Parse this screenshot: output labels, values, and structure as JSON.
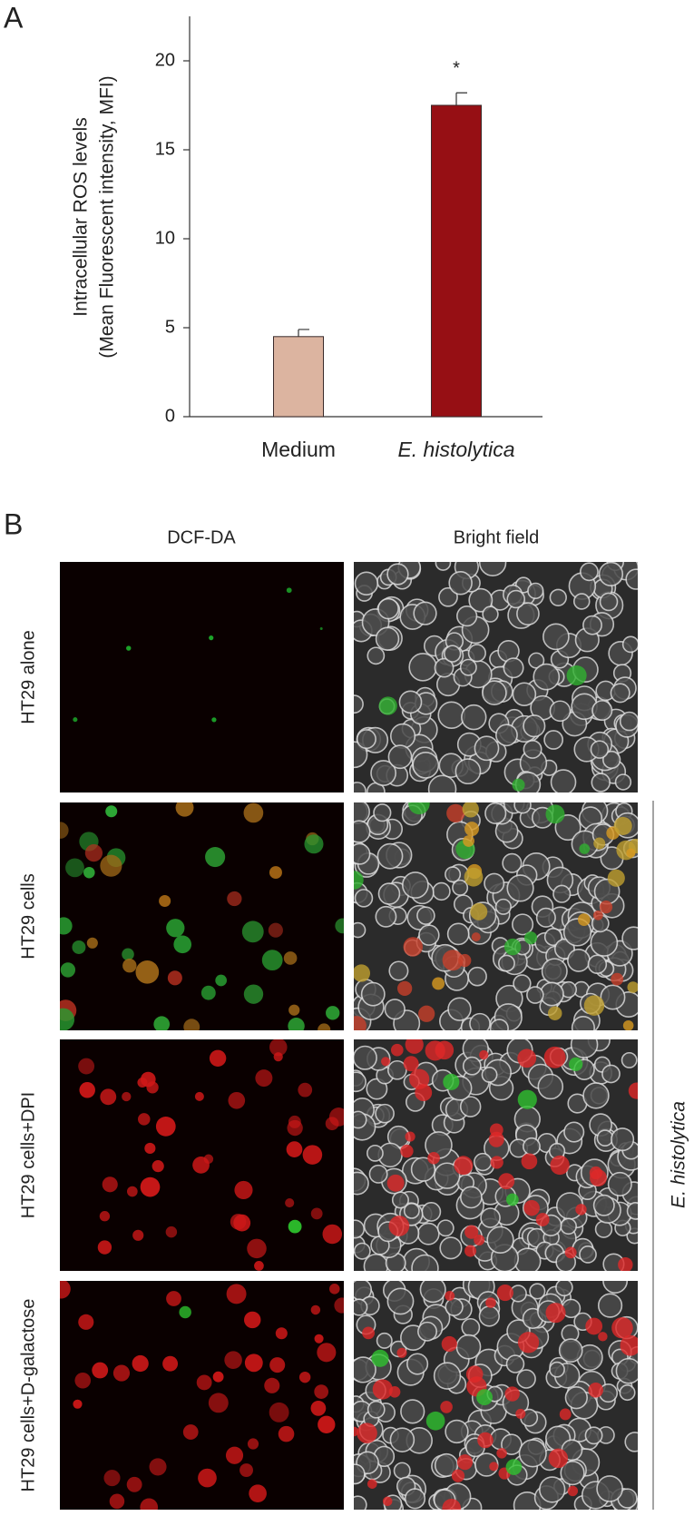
{
  "chart_data": {
    "type": "bar",
    "y_label": [
      "Intracellular ROS levels",
      "(Mean Fluorescent intensity, MFI)"
    ],
    "categories": [
      "Medium",
      "E. histolytica"
    ],
    "values": [
      4.5,
      17.5
    ],
    "errors": [
      0.4,
      0.7
    ],
    "colors": [
      "#dcb4a0",
      "#960f14"
    ],
    "ylim": [
      0,
      22.5
    ],
    "yticks": [
      0,
      5,
      10,
      15,
      20
    ],
    "annotations": [
      {
        "text": "*",
        "category": 1
      }
    ]
  },
  "panel_labels": [
    "A",
    "B"
  ],
  "image_grid": {
    "columns": [
      "DCF-DA",
      "Bright field"
    ],
    "rows": [
      "HT29 alone",
      "HT29 cells",
      "HT29 cells+DPI",
      "HT29 cells+D-galactose"
    ],
    "group_label": "E. histolytica"
  }
}
